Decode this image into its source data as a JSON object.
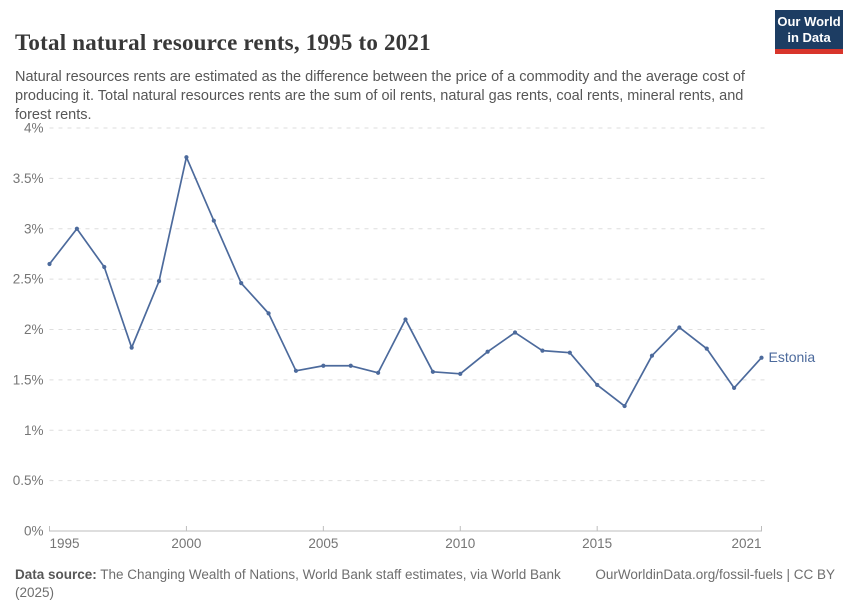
{
  "header": {
    "title": "Total natural resource rents, 1995 to 2021",
    "subtitle": "Natural resources rents are estimated as the difference between the price of a commodity and the average cost of producing it. Total natural resources rents are the sum of oil rents, natural gas rents, coal rents, mineral rents, and forest rents.",
    "logo": {
      "line1": "Our World",
      "line2": "in Data",
      "bg_color": "#1d3d63",
      "accent_color": "#d8352b"
    }
  },
  "chart_data": {
    "type": "line",
    "title": "Total natural resource rents, 1995 to 2021",
    "xlabel": "",
    "ylabel": "",
    "unit": "%",
    "grid": "horizontal-dashed",
    "legend_position": "end-of-line-label",
    "xlim": [
      1995,
      2021
    ],
    "ylim": [
      0,
      4
    ],
    "x": [
      1995,
      1996,
      1997,
      1998,
      1999,
      2000,
      2001,
      2002,
      2003,
      2004,
      2005,
      2006,
      2007,
      2008,
      2009,
      2010,
      2011,
      2012,
      2013,
      2014,
      2015,
      2016,
      2017,
      2018,
      2019,
      2020,
      2021
    ],
    "series": [
      {
        "name": "Estonia",
        "color": "#4c6a9c",
        "values": [
          2.65,
          3.0,
          2.62,
          1.82,
          2.48,
          3.71,
          3.08,
          2.46,
          2.16,
          1.59,
          1.64,
          1.64,
          1.57,
          2.1,
          1.58,
          1.56,
          1.78,
          1.97,
          1.79,
          1.77,
          1.45,
          1.24,
          1.74,
          2.02,
          1.81,
          1.42,
          1.72
        ]
      }
    ],
    "y_ticks": [
      {
        "v": 0,
        "label": "0%"
      },
      {
        "v": 0.5,
        "label": "0.5%"
      },
      {
        "v": 1,
        "label": "1%"
      },
      {
        "v": 1.5,
        "label": "1.5%"
      },
      {
        "v": 2,
        "label": "2%"
      },
      {
        "v": 2.5,
        "label": "2.5%"
      },
      {
        "v": 3,
        "label": "3%"
      },
      {
        "v": 3.5,
        "label": "3.5%"
      },
      {
        "v": 4,
        "label": "4%"
      }
    ],
    "x_ticks": [
      {
        "v": 1995,
        "label": "1995"
      },
      {
        "v": 2000,
        "label": "2000"
      },
      {
        "v": 2005,
        "label": "2005"
      },
      {
        "v": 2010,
        "label": "2010"
      },
      {
        "v": 2015,
        "label": "2015"
      },
      {
        "v": 2021,
        "label": "2021"
      }
    ]
  },
  "footer": {
    "datasource_label": "Data source:",
    "datasource_text": " The Changing Wealth of Nations, World Bank staff estimates, via World Bank (2025)",
    "credit": "OurWorldinData.org/fossil-fuels | CC BY"
  }
}
